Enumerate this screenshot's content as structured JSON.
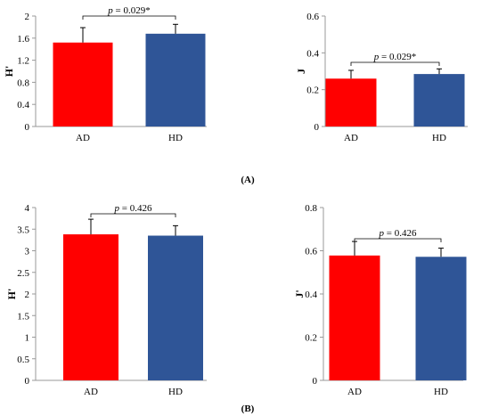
{
  "panel_labels": [
    "(A)",
    "(B)"
  ],
  "colors": {
    "AD": "#ff0000",
    "HD": "#2f5597",
    "axis": "#999999"
  },
  "chart_data": [
    {
      "id": "A-H",
      "type": "bar",
      "categories": [
        "AD",
        "HD"
      ],
      "values": [
        1.52,
        1.68
      ],
      "errors": [
        0.27,
        0.17
      ],
      "ylabel": "H'",
      "ylim": [
        0,
        2
      ],
      "yticks": [
        "0",
        "0.4",
        "0.8",
        "1.2",
        "1.6",
        "2"
      ],
      "annotation": "p = 0.029*",
      "grid": false
    },
    {
      "id": "A-J",
      "type": "bar",
      "categories": [
        "AD",
        "HD"
      ],
      "values": [
        0.26,
        0.285
      ],
      "errors": [
        0.045,
        0.028
      ],
      "ylabel": "J",
      "ylim": [
        0,
        0.6
      ],
      "yticks": [
        "0",
        "0.2",
        "0.4",
        "0.6"
      ],
      "annotation": "p = 0.029*",
      "grid": false
    },
    {
      "id": "B-H",
      "type": "bar",
      "categories": [
        "AD",
        "HD"
      ],
      "values": [
        3.38,
        3.35
      ],
      "errors": [
        0.35,
        0.23
      ],
      "ylabel": "H'",
      "ylim": [
        0,
        4
      ],
      "yticks": [
        "0",
        "0.5",
        "1",
        "1.5",
        "2",
        "2.5",
        "3",
        "3.5",
        "4"
      ],
      "annotation": "p = 0.426",
      "grid": false
    },
    {
      "id": "B-J",
      "type": "bar",
      "categories": [
        "AD",
        "HD"
      ],
      "values": [
        0.578,
        0.572
      ],
      "errors": [
        0.065,
        0.04
      ],
      "ylabel": "J'",
      "ylim": [
        0,
        0.8
      ],
      "yticks": [
        "0",
        "0.2",
        "0.4",
        "0.6",
        "0.8"
      ],
      "annotation": "p = 0.426",
      "grid": false
    }
  ]
}
